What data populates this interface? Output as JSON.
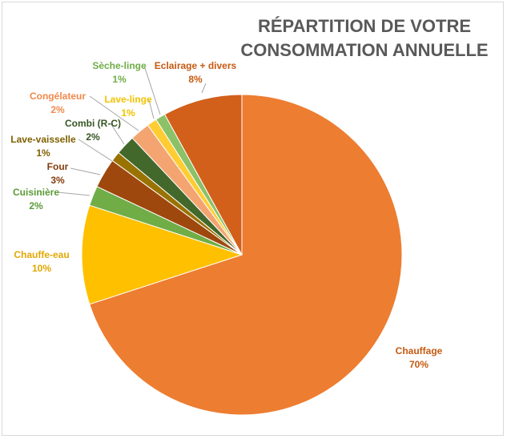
{
  "chart_data": {
    "type": "pie",
    "title_line1": "RÉPARTITION DE VOTRE",
    "title_line2": "CONSOMMATION ANNUELLE",
    "slices": [
      {
        "name": "Chauffage",
        "value": 70,
        "label": "70%",
        "color": "#ED7D31",
        "label_color": "#C55A11"
      },
      {
        "name": "Chauffe-eau",
        "value": 10,
        "label": "10%",
        "color": "#FFC000",
        "label_color": "#E2A800"
      },
      {
        "name": "Cuisinière",
        "value": 2,
        "label": "2%",
        "color": "#70AD47",
        "label_color": "#5B9A36"
      },
      {
        "name": "Four",
        "value": 3,
        "label": "3%",
        "color": "#9E480E",
        "label_color": "#843C0C"
      },
      {
        "name": "Lave-vaisselle",
        "value": 1,
        "label": "1%",
        "color": "#997300",
        "label_color": "#7F6000"
      },
      {
        "name": "Combi (R-C)",
        "value": 2,
        "label": "2%",
        "color": "#43682B",
        "label_color": "#375623"
      },
      {
        "name": "Congélateur",
        "value": 2,
        "label": "2%",
        "color": "#F4A470",
        "label_color": "#F08A4B"
      },
      {
        "name": "Lave-linge",
        "value": 1,
        "label": "1%",
        "color": "#FFCD33",
        "label_color": "#F2C200"
      },
      {
        "name": "Sèche-linge",
        "value": 1,
        "label": "1%",
        "color": "#8CC168",
        "label_color": "#70AD47"
      },
      {
        "name": "Eclairage + divers",
        "value": 8,
        "label": "8%",
        "color": "#D2601A",
        "label_color": "#C55A11"
      }
    ],
    "start_angle_deg": 0,
    "direction": "clockwise"
  }
}
